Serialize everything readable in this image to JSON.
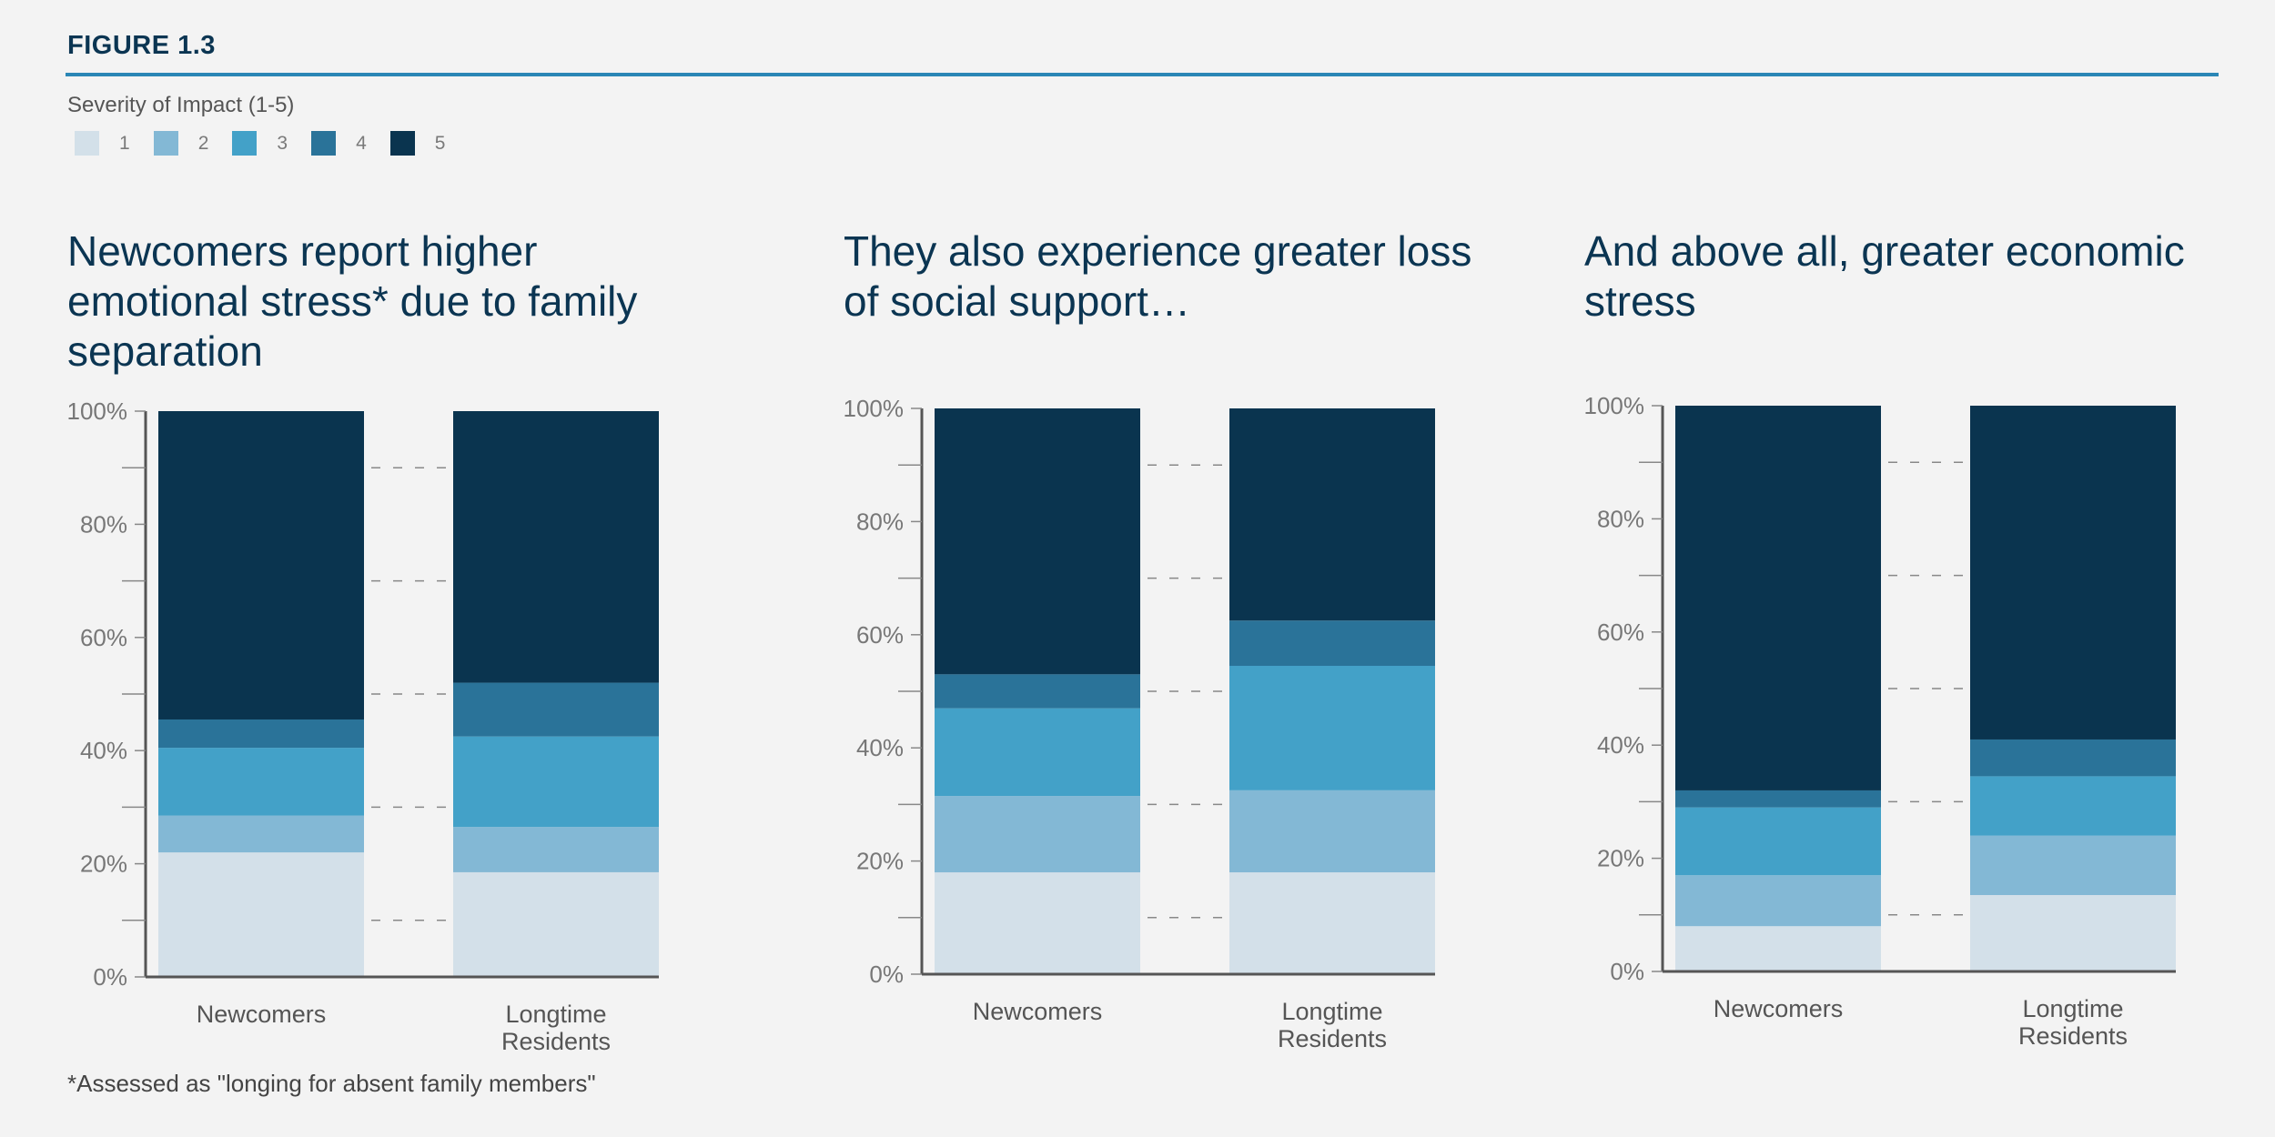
{
  "figure_label": "FIGURE 1.3",
  "legend": {
    "title": "Severity of Impact (1-5)",
    "items": [
      {
        "label": "1",
        "color": "#d3e0e9"
      },
      {
        "label": "2",
        "color": "#83b8d5"
      },
      {
        "label": "3",
        "color": "#43a1c8"
      },
      {
        "label": "4",
        "color": "#2a7399"
      },
      {
        "label": "5",
        "color": "#0a344f"
      }
    ]
  },
  "panels": [
    {
      "title": "Newcomers report higher emotional stress* due to family separation"
    },
    {
      "title": "They also experience greater loss of social support…"
    },
    {
      "title": "And above all, greater economic stress"
    }
  ],
  "footnote": "*Assessed as \"longing for absent family members\"",
  "chart_data": [
    {
      "type": "bar",
      "stacked": true,
      "title": "Newcomers report higher emotional stress* due to family separation",
      "categories": [
        "Newcomers",
        "Longtime Residents"
      ],
      "series": [
        {
          "name": "1",
          "values": [
            22,
            18.5
          ]
        },
        {
          "name": "2",
          "values": [
            6.5,
            8
          ]
        },
        {
          "name": "3",
          "values": [
            12,
            16
          ]
        },
        {
          "name": "4",
          "values": [
            5,
            9.5
          ]
        },
        {
          "name": "5",
          "values": [
            54.5,
            48
          ]
        }
      ],
      "yticks": [
        "0%",
        "20%",
        "40%",
        "60%",
        "80%",
        "100%"
      ],
      "ylim": [
        0,
        100
      ],
      "gridlines": "dashed at 10% steps between bars"
    },
    {
      "type": "bar",
      "stacked": true,
      "title": "They also experience greater loss of social support…",
      "categories": [
        "Newcomers",
        "Longtime Residents"
      ],
      "series": [
        {
          "name": "1",
          "values": [
            18,
            18
          ]
        },
        {
          "name": "2",
          "values": [
            13.5,
            14.5
          ]
        },
        {
          "name": "3",
          "values": [
            15.5,
            22
          ]
        },
        {
          "name": "4",
          "values": [
            6,
            8
          ]
        },
        {
          "name": "5",
          "values": [
            47,
            37.5
          ]
        }
      ],
      "yticks": [
        "0%",
        "20%",
        "40%",
        "60%",
        "80%",
        "100%"
      ],
      "ylim": [
        0,
        100
      ],
      "gridlines": "dashed at 10% steps between bars"
    },
    {
      "type": "bar",
      "stacked": true,
      "title": "And above all, greater economic stress",
      "categories": [
        "Newcomers",
        "Longtime Residents"
      ],
      "series": [
        {
          "name": "1",
          "values": [
            8,
            13.5
          ]
        },
        {
          "name": "2",
          "values": [
            9,
            10.5
          ]
        },
        {
          "name": "3",
          "values": [
            12,
            10.5
          ]
        },
        {
          "name": "4",
          "values": [
            3,
            6.5
          ]
        },
        {
          "name": "5",
          "values": [
            68,
            59
          ]
        }
      ],
      "yticks": [
        "0%",
        "20%",
        "40%",
        "60%",
        "80%",
        "100%"
      ],
      "ylim": [
        0,
        100
      ],
      "gridlines": "dashed at 10% steps between bars"
    }
  ]
}
